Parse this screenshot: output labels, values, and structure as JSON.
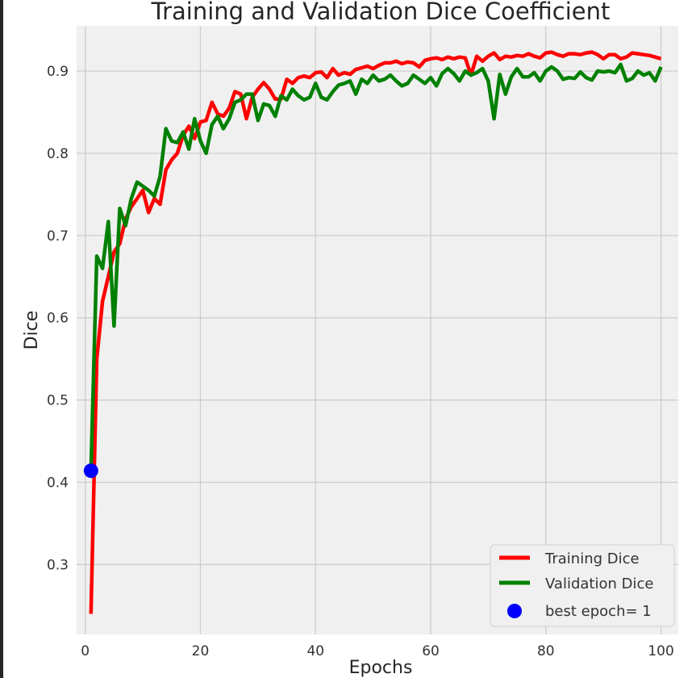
{
  "chart_data": {
    "type": "line",
    "title": "Training and Validation Dice Coefficient",
    "xlabel": "Epochs",
    "ylabel": "Dice",
    "xlim": [
      -1.5,
      103
    ],
    "ylim": [
      0.215,
      0.955
    ],
    "xticks": [
      0,
      20,
      40,
      60,
      80,
      100
    ],
    "yticks": [
      0.3,
      0.4,
      0.5,
      0.6,
      0.7,
      0.8,
      0.9
    ],
    "ytick_labels": [
      "0.3",
      "0.4",
      "0.5",
      "0.6",
      "0.7",
      "0.8",
      "0.9"
    ],
    "grid": true,
    "legend_position": "bottom-right",
    "x": [
      1,
      2,
      3,
      4,
      5,
      6,
      7,
      8,
      9,
      10,
      11,
      12,
      13,
      14,
      15,
      16,
      17,
      18,
      19,
      20,
      21,
      22,
      23,
      24,
      25,
      26,
      27,
      28,
      29,
      30,
      31,
      32,
      33,
      34,
      35,
      36,
      37,
      38,
      39,
      40,
      41,
      42,
      43,
      44,
      45,
      46,
      47,
      48,
      49,
      50,
      51,
      52,
      53,
      54,
      55,
      56,
      57,
      58,
      59,
      60,
      61,
      62,
      63,
      64,
      65,
      66,
      67,
      68,
      69,
      70,
      71,
      72,
      73,
      74,
      75,
      76,
      77,
      78,
      79,
      80,
      81,
      82,
      83,
      84,
      85,
      86,
      87,
      88,
      89,
      90,
      91,
      92,
      93,
      94,
      95,
      96,
      97,
      98,
      99,
      100
    ],
    "series": [
      {
        "name": "Training Dice",
        "color": "#ff0000",
        "values": [
          0.24,
          0.55,
          0.62,
          0.65,
          0.68,
          0.69,
          0.72,
          0.735,
          0.745,
          0.755,
          0.728,
          0.745,
          0.738,
          0.78,
          0.792,
          0.8,
          0.822,
          0.833,
          0.818,
          0.838,
          0.84,
          0.862,
          0.848,
          0.845,
          0.855,
          0.875,
          0.872,
          0.842,
          0.868,
          0.878,
          0.886,
          0.878,
          0.866,
          0.866,
          0.89,
          0.885,
          0.892,
          0.894,
          0.892,
          0.898,
          0.899,
          0.892,
          0.903,
          0.895,
          0.898,
          0.896,
          0.902,
          0.904,
          0.906,
          0.903,
          0.907,
          0.91,
          0.91,
          0.912,
          0.909,
          0.911,
          0.91,
          0.905,
          0.913,
          0.915,
          0.916,
          0.914,
          0.917,
          0.915,
          0.917,
          0.916,
          0.895,
          0.918,
          0.912,
          0.918,
          0.922,
          0.914,
          0.918,
          0.917,
          0.919,
          0.918,
          0.921,
          0.918,
          0.916,
          0.922,
          0.923,
          0.92,
          0.918,
          0.921,
          0.921,
          0.92,
          0.922,
          0.923,
          0.92,
          0.915,
          0.92,
          0.92,
          0.915,
          0.917,
          0.922,
          0.921,
          0.92,
          0.919,
          0.917,
          0.915
        ]
      },
      {
        "name": "Validation Dice",
        "color": "#008000",
        "values": [
          0.415,
          0.675,
          0.66,
          0.717,
          0.59,
          0.733,
          0.712,
          0.745,
          0.765,
          0.76,
          0.755,
          0.748,
          0.772,
          0.83,
          0.815,
          0.813,
          0.826,
          0.805,
          0.842,
          0.815,
          0.8,
          0.835,
          0.845,
          0.83,
          0.842,
          0.862,
          0.865,
          0.872,
          0.872,
          0.84,
          0.86,
          0.858,
          0.845,
          0.87,
          0.865,
          0.878,
          0.87,
          0.865,
          0.868,
          0.885,
          0.868,
          0.865,
          0.875,
          0.883,
          0.885,
          0.888,
          0.872,
          0.89,
          0.885,
          0.895,
          0.888,
          0.89,
          0.895,
          0.888,
          0.882,
          0.885,
          0.895,
          0.89,
          0.885,
          0.892,
          0.882,
          0.897,
          0.903,
          0.897,
          0.888,
          0.9,
          0.895,
          0.898,
          0.903,
          0.888,
          0.842,
          0.896,
          0.872,
          0.893,
          0.903,
          0.893,
          0.893,
          0.898,
          0.888,
          0.9,
          0.905,
          0.9,
          0.89,
          0.892,
          0.891,
          0.899,
          0.892,
          0.889,
          0.9,
          0.899,
          0.9,
          0.898,
          0.908,
          0.888,
          0.891,
          0.9,
          0.895,
          0.898,
          0.888,
          0.905
        ]
      }
    ],
    "best_point": {
      "label": "best epoch= 1",
      "x": 1,
      "y": 0.414,
      "color": "#0000ff"
    },
    "style": {
      "background": "#f0f0f0",
      "grid": "#cbcbcb"
    }
  }
}
